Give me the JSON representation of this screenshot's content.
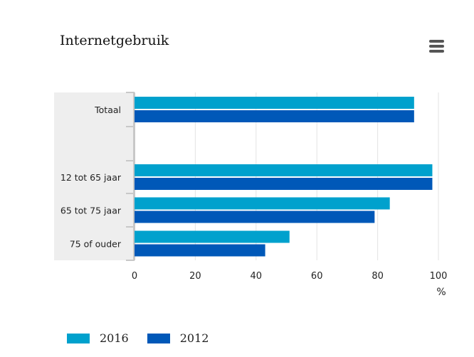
{
  "chart_data": {
    "type": "bar",
    "orientation": "horizontal",
    "title": "Internetgebruik",
    "categories": [
      "Totaal",
      "",
      "12 tot 65 jaar",
      "65 tot 75 jaar",
      "75 of ouder"
    ],
    "series": [
      {
        "name": "2016",
        "color": "#00a1cd",
        "values": [
          92,
          null,
          98,
          84,
          51
        ]
      },
      {
        "name": "2012",
        "color": "#0058b8",
        "values": [
          92,
          null,
          98,
          79,
          43
        ]
      }
    ],
    "xlim": [
      0,
      100
    ],
    "xticks": [
      0,
      20,
      40,
      60,
      80,
      100
    ],
    "unit": "%",
    "grid": true,
    "legend": "bottom-left"
  },
  "icons": {
    "menu": "hamburger-menu-icon"
  }
}
